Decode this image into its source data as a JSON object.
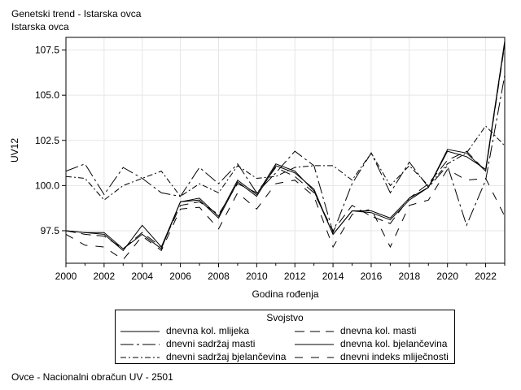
{
  "header": {
    "title": "Genetski trend - Istarska ovca",
    "subtitle": "Istarska ovca"
  },
  "footer": {
    "text": "Ovce - Nacionalni obračun UV - 2501"
  },
  "legend": {
    "title": "Svojstvo"
  },
  "chart_data": {
    "type": "line",
    "title": "Genetski trend - Istarska ovca",
    "subtitle": "Istarska ovca",
    "xlabel": "Godina rođenja",
    "ylabel": "UV12",
    "xlim": [
      2000,
      2023
    ],
    "ylim": [
      95.7,
      108.2
    ],
    "x_ticks": [
      2000,
      2002,
      2004,
      2006,
      2008,
      2010,
      2012,
      2014,
      2016,
      2018,
      2020,
      2022
    ],
    "y_ticks": [
      97.5,
      100.0,
      102.5,
      105.0,
      107.5
    ],
    "y_tick_labels": [
      "97.5",
      "100.0",
      "102.5",
      "105.0",
      "107.5"
    ],
    "grid": true,
    "legend_position": "bottom",
    "x": [
      2000,
      2001,
      2002,
      2003,
      2004,
      2005,
      2006,
      2007,
      2008,
      2009,
      2010,
      2011,
      2012,
      2013,
      2014,
      2015,
      2016,
      2017,
      2018,
      2019,
      2020,
      2021,
      2022,
      2023
    ],
    "series": [
      {
        "name": "dnevna kol. mlijeka",
        "dash": "solid",
        "values": [
          97.5,
          97.4,
          97.4,
          96.5,
          97.3,
          96.5,
          99.1,
          99.2,
          98.2,
          100.2,
          99.4,
          101.1,
          100.7,
          99.8,
          97.3,
          98.6,
          98.5,
          98.1,
          99.2,
          99.9,
          102.0,
          101.8,
          100.8,
          107.9
        ]
      },
      {
        "name": "dnevna kol. masti",
        "dash": "12,7",
        "values": [
          97.5,
          97.3,
          97.2,
          96.5,
          97.4,
          96.6,
          98.9,
          99.1,
          98.4,
          100.1,
          99.6,
          101.0,
          100.5,
          99.6,
          97.5,
          98.9,
          98.3,
          97.9,
          99.3,
          100.1,
          101.4,
          101.9,
          100.8,
          107.8
        ]
      },
      {
        "name": "dnevni sadržaj masti",
        "dash": "16,4,3,4",
        "values": [
          100.8,
          101.2,
          99.5,
          101.0,
          100.4,
          99.6,
          99.4,
          101.0,
          100.1,
          101.2,
          99.6,
          100.7,
          101.9,
          101.1,
          97.4,
          100.1,
          101.8,
          99.6,
          101.3,
          99.9,
          101.1,
          97.8,
          100.3,
          106.1
        ]
      },
      {
        "name": "dnevna kol. bjelančevina",
        "dash": "solid",
        "values": [
          97.5,
          97.4,
          97.3,
          96.4,
          97.8,
          96.6,
          99.1,
          99.3,
          98.3,
          100.3,
          99.5,
          101.2,
          100.8,
          99.7,
          97.3,
          98.6,
          98.6,
          98.2,
          99.3,
          99.9,
          101.9,
          101.6,
          100.9,
          108.0
        ]
      },
      {
        "name": "dnevni sadržaj bjelančevina",
        "dash": "7,3,2,3",
        "values": [
          100.5,
          100.4,
          99.2,
          100.0,
          100.4,
          100.8,
          99.4,
          100.1,
          99.6,
          101.1,
          100.4,
          100.5,
          101.0,
          101.1,
          101.1,
          100.3,
          101.8,
          100.0,
          101.1,
          100.0,
          101.2,
          101.8,
          103.3,
          102.2
        ]
      },
      {
        "name": "dnevni indeks mliječnosti",
        "dash": "10,10",
        "values": [
          97.3,
          96.7,
          96.6,
          95.9,
          97.2,
          96.4,
          98.7,
          98.8,
          97.6,
          99.6,
          98.7,
          100.1,
          100.3,
          99.4,
          96.6,
          98.4,
          98.7,
          96.6,
          98.9,
          99.2,
          100.9,
          100.3,
          100.4,
          98.3
        ]
      }
    ]
  }
}
